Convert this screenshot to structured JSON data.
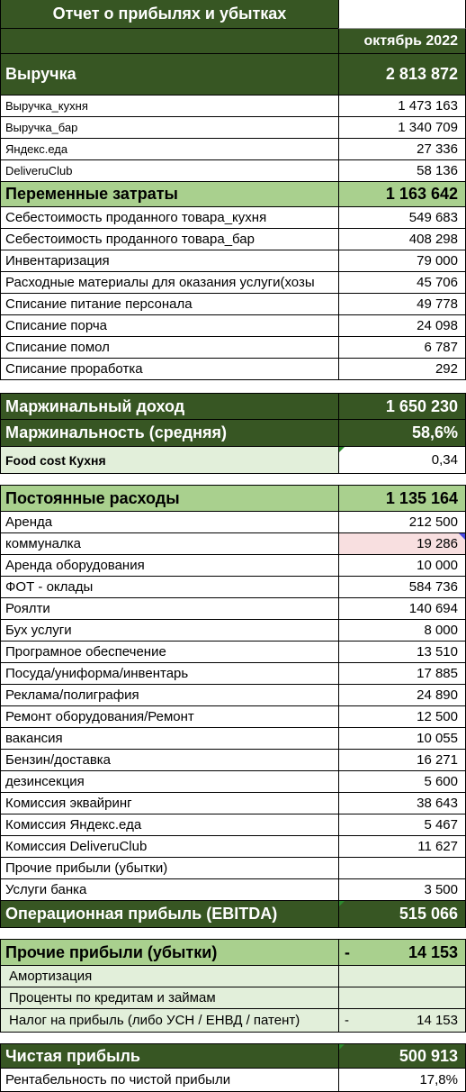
{
  "title": "Отчет о прибылях и убытках",
  "period": "октябрь 2022",
  "revenue": {
    "label": "Выручка",
    "value": "2 813 872",
    "items": [
      {
        "label": "Выручка_кухня",
        "value": "1 473 163"
      },
      {
        "label": "Выручка_бар",
        "value": "1 340 709"
      },
      {
        "label": "Яндекс.еда",
        "value": "27 336"
      },
      {
        "label": "DeliveruClub",
        "value": "58 136"
      }
    ]
  },
  "variable_costs": {
    "label": "Переменные затраты",
    "value": "1 163 642",
    "items": [
      {
        "label": "Себестоимость проданного товара_кухня",
        "value": "549 683"
      },
      {
        "label": "Себестоимость проданного товара_бар",
        "value": "408 298"
      },
      {
        "label": "Инвентаризация",
        "value": "79 000"
      },
      {
        "label": "Расходные материалы для оказания услуги(хозы",
        "value": "45 706"
      },
      {
        "label": "Списание питание персонала",
        "value": "49 778"
      },
      {
        "label": "Списание порча",
        "value": "24 098"
      },
      {
        "label": "Списание помол",
        "value": "6 787"
      },
      {
        "label": "Списание проработка",
        "value": "292"
      }
    ]
  },
  "margin_income": {
    "label": "Маржинальный доход",
    "value": "1 650 230"
  },
  "margin_avg": {
    "label": "Маржинальность (средняя)",
    "value": "58,6%"
  },
  "food_cost": {
    "label": "Food cost Кухня",
    "value": "0,34"
  },
  "fixed_costs": {
    "label": "Постоянные расходы",
    "value": "1 135 164",
    "items": [
      {
        "label": "Аренда",
        "value": "212 500"
      },
      {
        "label": "коммуналка",
        "value": "19 286"
      },
      {
        "label": "Аренда оборудования",
        "value": "10 000"
      },
      {
        "label": "ФОТ - оклады",
        "value": "584 736"
      },
      {
        "label": "Роялти",
        "value": "140 694"
      },
      {
        "label": "Бух услуги",
        "value": "8 000"
      },
      {
        "label": "Програмное обеспечение",
        "value": "13 510"
      },
      {
        "label": "Посуда/униформа/инвентарь",
        "value": "17 885"
      },
      {
        "label": "Реклама/полиграфия",
        "value": "24 890"
      },
      {
        "label": "Ремонт оборудования/Ремонт",
        "value": "12 500"
      },
      {
        "label": "вакансия",
        "value": "10 055"
      },
      {
        "label": "Бензин/доставка",
        "value": "16 271"
      },
      {
        "label": "дезинсекция",
        "value": "5 600"
      },
      {
        "label": "Комиссия эквайринг",
        "value": "38 643"
      },
      {
        "label": "Комиссия Яндекс.еда",
        "value": "5 467"
      },
      {
        "label": "Комиссия DeliveruClub",
        "value": "11 627"
      },
      {
        "label": "Прочие прибыли (убытки)",
        "value": ""
      },
      {
        "label": "Услуги банка",
        "value": "3 500"
      }
    ]
  },
  "ebitda": {
    "label": "Операционная прибыль (EBITDA)",
    "value": "515 066"
  },
  "other": {
    "label": "Прочие прибыли (убытки)",
    "dash": "-",
    "value": "14 153",
    "items": [
      {
        "label": "Амортизация",
        "dash": "",
        "value": ""
      },
      {
        "label": "Проценты по кредитам и займам",
        "dash": "",
        "value": ""
      },
      {
        "label": "Налог на прибыль (либо УСН / ЕНВД / патент)",
        "dash": "-",
        "value": "14 153"
      }
    ]
  },
  "net_profit": {
    "label": "Чистая прибыль",
    "value": "500 913"
  },
  "net_margin": {
    "label": "Рентабельность по чистой прибыли",
    "value": "17,8%"
  },
  "colors": {
    "header": "#375623",
    "section": "#a9d08e",
    "light": "#e2efda",
    "highlight": "#f8dfe0"
  }
}
